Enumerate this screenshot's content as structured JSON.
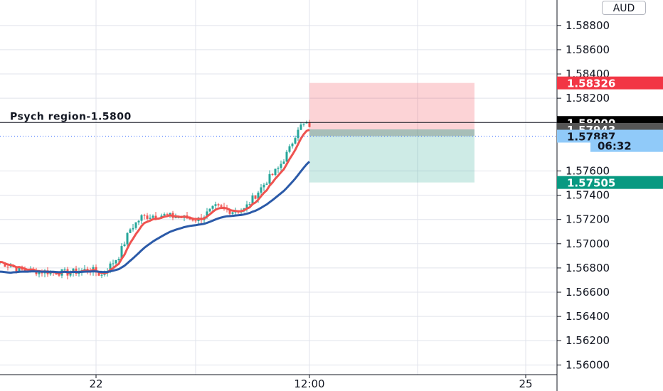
{
  "chart_data": {
    "type": "candlestick",
    "symbol_currency": "AUD",
    "y_ticks": [
      "1.56000",
      "1.56200",
      "1.56400",
      "1.56600",
      "1.56800",
      "1.57000",
      "1.57200",
      "1.57400",
      "1.57600",
      "1.58200",
      "1.58400",
      "1.58600",
      "1.58800"
    ],
    "y_tick_values": [
      1.56,
      1.562,
      1.564,
      1.566,
      1.568,
      1.57,
      1.572,
      1.574,
      1.576,
      1.582,
      1.584,
      1.586,
      1.588
    ],
    "ylim": [
      1.5592,
      1.5901
    ],
    "x_ticks": [
      {
        "label": "22",
        "index": 34
      },
      {
        "label": "12:00",
        "index": 109
      },
      {
        "label": "25",
        "index": 185
      }
    ],
    "annotation": {
      "text": "Psych region-1.5800",
      "price": 1.58
    },
    "price_tags": [
      {
        "label": "1.58326",
        "price": 1.58326,
        "bg": "#f23645",
        "fg": "#ffffff"
      },
      {
        "label": "1.58000",
        "price": 1.58,
        "bg": "#000000",
        "fg": "#ffffff"
      },
      {
        "label": "1.57943",
        "price": 1.57943,
        "bg": "#555555",
        "fg": "#ffffff"
      },
      {
        "label": "1.57887",
        "price": 1.57887,
        "bg": "#90caf9",
        "fg": "#131722"
      },
      {
        "label": "06:32",
        "price": 1.5781,
        "bg": "#90caf9",
        "fg": "#131722"
      },
      {
        "label": "1.57505",
        "price": 1.57505,
        "bg": "#089981",
        "fg": "#ffffff"
      }
    ],
    "position": {
      "side": "short",
      "entry": 1.57887,
      "stop": 1.58326,
      "target": 1.57505,
      "start_index": 109,
      "end_index": 167
    },
    "ema_fast": {
      "name": "",
      "color": "#ef5350"
    },
    "ema_slow": {
      "name": "",
      "color": "#2b5aa8"
    },
    "candles_anchor": [
      [
        0,
        1.5685
      ],
      [
        8,
        1.5678
      ],
      [
        16,
        1.5677
      ],
      [
        24,
        1.5676
      ],
      [
        32,
        1.5679
      ],
      [
        36,
        1.5674
      ],
      [
        42,
        1.569
      ],
      [
        46,
        1.5712
      ],
      [
        50,
        1.5722
      ],
      [
        56,
        1.5724
      ],
      [
        62,
        1.5722
      ],
      [
        70,
        1.572
      ],
      [
        76,
        1.573
      ],
      [
        82,
        1.5727
      ],
      [
        86,
        1.5728
      ],
      [
        90,
        1.574
      ],
      [
        94,
        1.5752
      ],
      [
        98,
        1.5762
      ],
      [
        102,
        1.5778
      ],
      [
        105,
        1.5796
      ],
      [
        108,
        1.5799
      ],
      [
        109,
        1.5794
      ]
    ],
    "colors": {
      "up": "#26a69a",
      "down": "#ef5350",
      "stop_zone": "rgba(242,54,69,0.22)",
      "target_zone": "rgba(8,153,129,0.20)",
      "grid": "#e0e3eb",
      "axis": "#131722"
    }
  }
}
